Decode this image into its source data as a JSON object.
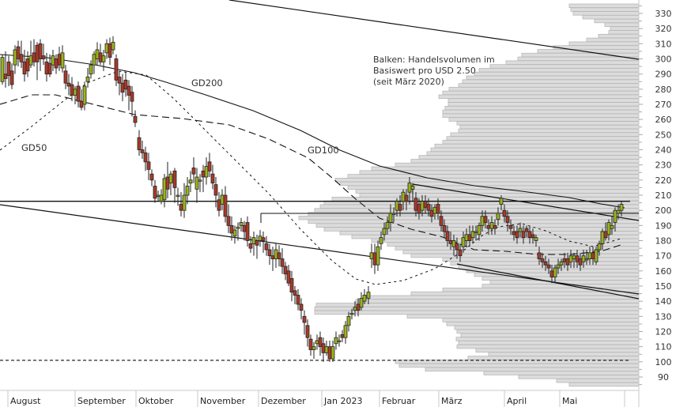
{
  "note": {
    "line1": "Balken: Handelsvolumen im",
    "line2": "Basiswert pro USD 2.50",
    "line3": "(seit März 2020)"
  },
  "ma_labels": {
    "gd50": "GD50",
    "gd100": "GD100",
    "gd200": "GD200"
  },
  "colors": {
    "up": "#9bb31f",
    "down": "#a93a2a",
    "volume_bar": "#dcdcdc",
    "volume_border": "#b8b8b8",
    "line": "#111111"
  },
  "chart_data": {
    "type": "candlestick",
    "title": "",
    "xlabel": "",
    "ylabel": "",
    "ylim": [
      85,
      335
    ],
    "y_ticks": [
      90,
      100,
      110,
      120,
      130,
      140,
      150,
      160,
      170,
      180,
      190,
      200,
      210,
      220,
      230,
      240,
      250,
      260,
      270,
      280,
      290,
      300,
      310,
      320,
      330
    ],
    "x_month_labels": [
      "August",
      "September",
      "Oktober",
      "November",
      "Dezember",
      "Jan 2023",
      "Februar",
      "März",
      "April",
      "Mai"
    ],
    "horizontal_lines": [
      {
        "value": 206,
        "style": "solid"
      },
      {
        "value": 101,
        "style": "dashed"
      }
    ],
    "legend_note": "Balken: Handelsvolumen im Basiswert pro USD 2.50 (seit März 2020)",
    "moving_averages": [
      "GD50",
      "GD100",
      "GD200"
    ],
    "approx_close_by_month": {
      "August": 295,
      "September": 285,
      "Oktober": 215,
      "November": 185,
      "Dezember": 120,
      "Jan 2023": 145,
      "Februar": 200,
      "März": 180,
      "April": 165,
      "Mai": 203
    },
    "volume_profile_price_step": 2.5,
    "grid": false
  }
}
